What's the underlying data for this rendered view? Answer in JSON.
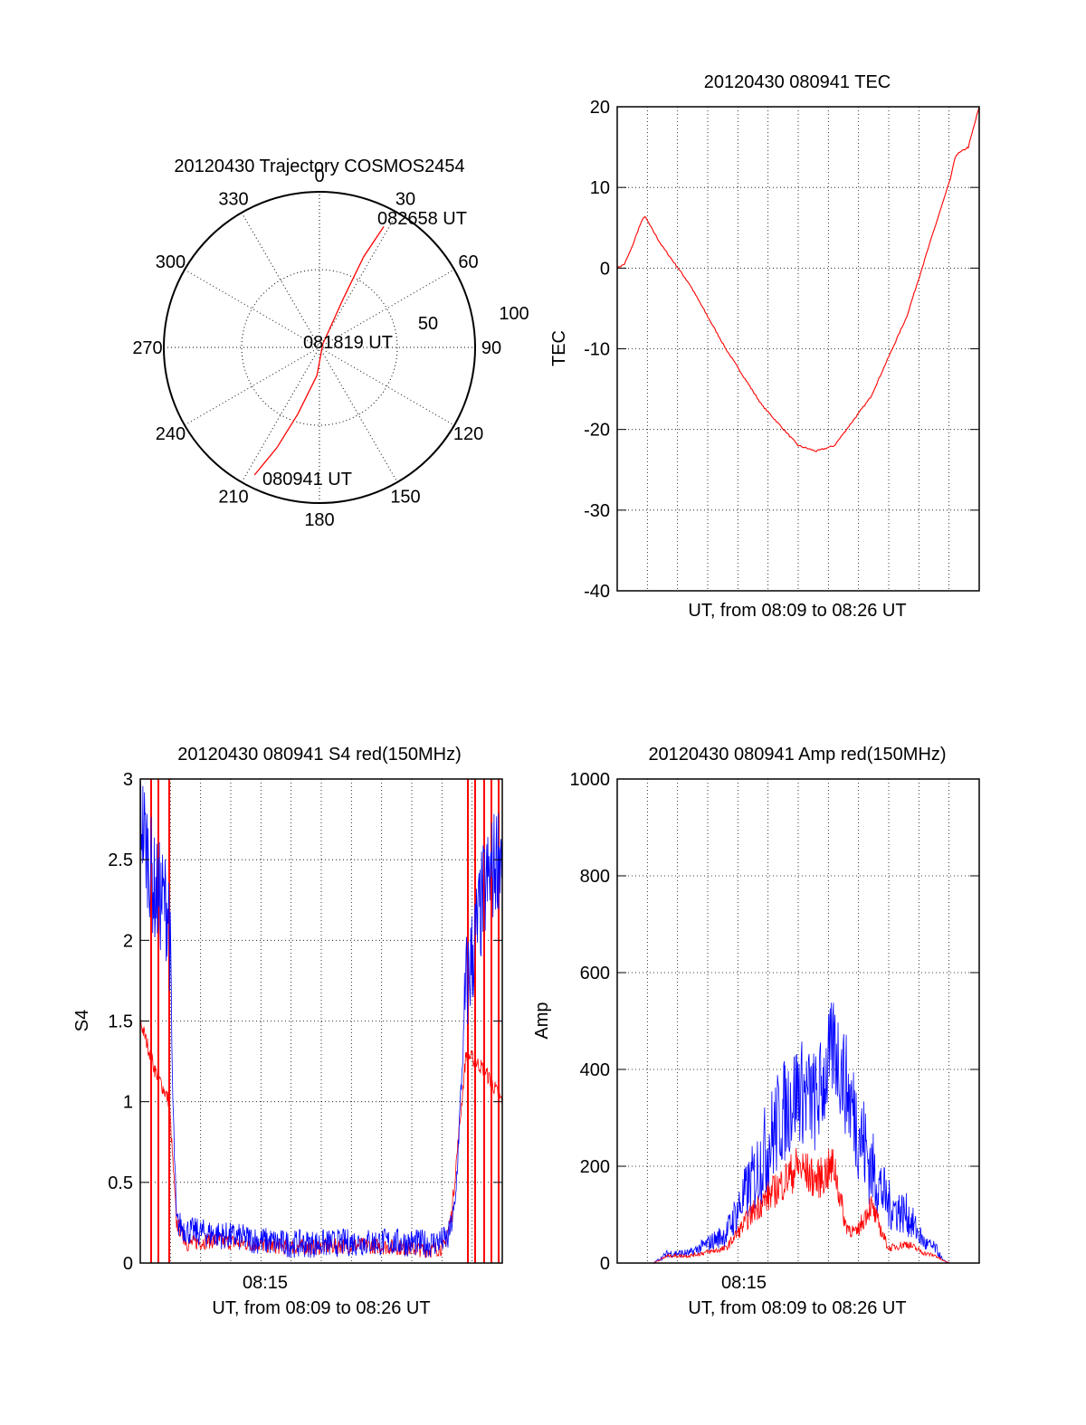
{
  "chart_data": [
    {
      "type": "polar",
      "title": "20120430 Trajectory COSMOS2454",
      "angle_ticks": [
        "0",
        "30",
        "60",
        "90",
        "120",
        "150",
        "180",
        "210",
        "240",
        "270",
        "300",
        "330"
      ],
      "radial_ticks": [
        "50",
        "100"
      ],
      "series": [
        {
          "color": "#ff0000",
          "points": [
            {
              "azimuth": 207,
              "radius": 92
            },
            {
              "azimuth": 203,
              "radius": 70
            },
            {
              "azimuth": 198,
              "radius": 45
            },
            {
              "azimuth": 185,
              "radius": 18
            },
            {
              "azimuth": 45,
              "radius": 3
            },
            {
              "azimuth": 26,
              "radius": 35
            },
            {
              "azimuth": 26,
              "radius": 65
            },
            {
              "azimuth": 28,
              "radius": 88
            }
          ]
        }
      ],
      "annotations": [
        "082658 UT",
        "081819 UT",
        "080941 UT"
      ]
    },
    {
      "type": "line",
      "title": "20120430 080941 TEC",
      "xlabel": "UT, from 08:09 to 08:26 UT",
      "ylabel": "TEC",
      "ylim": [
        -40,
        20
      ],
      "yticks": [
        "20",
        "10",
        "0",
        "-10",
        "-20",
        "-30",
        "-40"
      ],
      "grid": true,
      "series": [
        {
          "color": "#ff0000",
          "x": [
            0,
            0.02,
            0.04,
            0.06,
            0.075,
            0.12,
            0.2,
            0.3,
            0.4,
            0.5,
            0.55,
            0.6,
            0.7,
            0.8,
            0.87,
            0.92,
            0.935,
            0.97,
            1.0
          ],
          "y": [
            0,
            0.5,
            2.5,
            5,
            6.5,
            3,
            -2,
            -10,
            -17,
            -22,
            -22.7,
            -22,
            -16,
            -6,
            4,
            11,
            14,
            15,
            20
          ]
        }
      ]
    },
    {
      "type": "line",
      "title": "20120430 080941 S4 red(150MHz)",
      "xlabel": "UT, from 08:09 to 08:26 UT",
      "ylabel": "S4",
      "ylim": [
        0,
        3
      ],
      "yticks": [
        "3",
        "2.5",
        "2",
        "1.5",
        "1",
        "0.5",
        "0"
      ],
      "xtick_label": "08:15",
      "grid": true,
      "series": [
        {
          "color": "#0000ff",
          "x": [
            0,
            0.04,
            0.08,
            0.09,
            0.1,
            0.13,
            0.2,
            0.3,
            0.4,
            0.5,
            0.6,
            0.7,
            0.8,
            0.85,
            0.87,
            0.9,
            0.95,
            1.0
          ],
          "y": [
            2.8,
            2.3,
            2.2,
            1.0,
            0.25,
            0.2,
            0.18,
            0.15,
            0.12,
            0.12,
            0.13,
            0.13,
            0.12,
            0.15,
            0.35,
            1.7,
            2.3,
            2.6
          ],
          "noise": 0.35
        },
        {
          "color": "#ff0000",
          "x": [
            0,
            0.04,
            0.08,
            0.1,
            0.13,
            0.2,
            0.3,
            0.4,
            0.5,
            0.6,
            0.7,
            0.8,
            0.84,
            0.86,
            0.9,
            0.95,
            1.0
          ],
          "y": [
            1.5,
            1.2,
            1.0,
            0.25,
            0.12,
            0.14,
            0.12,
            0.1,
            0.1,
            0.11,
            0.1,
            0.08,
            0.1,
            0.3,
            1.3,
            1.2,
            1.0
          ],
          "noise": 0.2,
          "spike_x": [
            0.03,
            0.05,
            0.08,
            0.905,
            0.925,
            0.95,
            0.97,
            0.99
          ]
        }
      ]
    },
    {
      "type": "line",
      "title": "20120430 080941 Amp red(150MHz)",
      "xlabel": "UT, from 08:09 to 08:26 UT",
      "ylabel": "Amp",
      "ylim": [
        0,
        1000
      ],
      "yticks": [
        "1000",
        "800",
        "600",
        "400",
        "200",
        "0"
      ],
      "xtick_label": "08:15",
      "grid": true,
      "series": [
        {
          "color": "#0000ff",
          "x": [
            0,
            0.1,
            0.14,
            0.2,
            0.3,
            0.38,
            0.45,
            0.5,
            0.55,
            0.6,
            0.65,
            0.7,
            0.75,
            0.8,
            0.85,
            0.88,
            0.9,
            0.92,
            1.0
          ],
          "y": [
            0,
            0,
            20,
            20,
            60,
            180,
            300,
            360,
            330,
            450,
            320,
            200,
            120,
            100,
            40,
            30,
            5,
            0,
            0
          ],
          "noise": 110
        },
        {
          "color": "#ff0000",
          "x": [
            0,
            0.1,
            0.14,
            0.2,
            0.3,
            0.38,
            0.45,
            0.5,
            0.55,
            0.6,
            0.63,
            0.66,
            0.7,
            0.75,
            0.8,
            0.85,
            0.88,
            0.9,
            0.92,
            1.0
          ],
          "y": [
            0,
            0,
            15,
            15,
            30,
            110,
            160,
            200,
            170,
            200,
            80,
            60,
            120,
            30,
            40,
            20,
            15,
            5,
            0,
            0
          ],
          "noise": 60
        }
      ]
    }
  ]
}
